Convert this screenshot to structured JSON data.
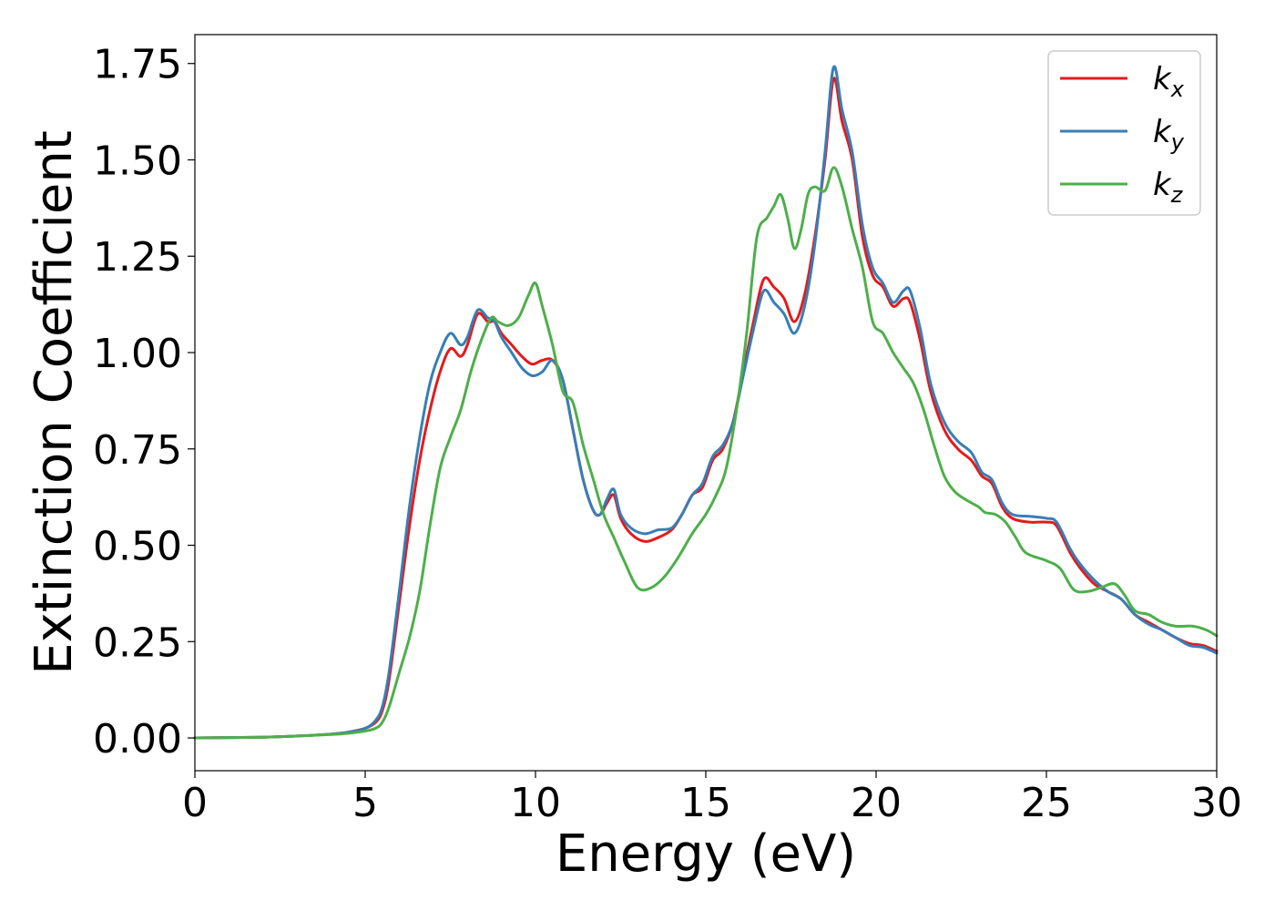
{
  "chart_data": {
    "type": "line",
    "xlabel": "Energy (eV)",
    "ylabel": "Extinction Coefficient",
    "xlim": [
      0,
      30
    ],
    "ylim": [
      -0.085,
      1.825
    ],
    "xticks": [
      0,
      5,
      10,
      15,
      20,
      25,
      30
    ],
    "xtick_labels": [
      "0",
      "5",
      "10",
      "15",
      "20",
      "25",
      "30"
    ],
    "yticks": [
      0,
      0.25,
      0.5,
      0.75,
      1.0,
      1.25,
      1.5,
      1.75
    ],
    "ytick_labels": [
      "0.00",
      "0.25",
      "0.50",
      "0.75",
      "1.00",
      "1.25",
      "1.50",
      "1.75"
    ],
    "grid": false,
    "legend_position": "top-right",
    "series": [
      {
        "name": "k_x",
        "base": "k",
        "sub": "x",
        "color": "#e41a1c",
        "points": [
          [
            0,
            0
          ],
          [
            2,
            0.002
          ],
          [
            3,
            0.005
          ],
          [
            4,
            0.01
          ],
          [
            4.5,
            0.015
          ],
          [
            5,
            0.025
          ],
          [
            5.3,
            0.04
          ],
          [
            5.5,
            0.07
          ],
          [
            5.7,
            0.15
          ],
          [
            6,
            0.35
          ],
          [
            6.3,
            0.55
          ],
          [
            6.6,
            0.72
          ],
          [
            6.9,
            0.85
          ],
          [
            7.2,
            0.95
          ],
          [
            7.5,
            1.01
          ],
          [
            7.8,
            0.99
          ],
          [
            8.0,
            1.02
          ],
          [
            8.3,
            1.1
          ],
          [
            8.6,
            1.08
          ],
          [
            8.8,
            1.08
          ],
          [
            9.0,
            1.05
          ],
          [
            9.3,
            1.02
          ],
          [
            9.6,
            0.99
          ],
          [
            9.9,
            0.97
          ],
          [
            10.2,
            0.98
          ],
          [
            10.5,
            0.98
          ],
          [
            10.8,
            0.93
          ],
          [
            11.1,
            0.8
          ],
          [
            11.4,
            0.67
          ],
          [
            11.7,
            0.59
          ],
          [
            11.9,
            0.58
          ],
          [
            12.1,
            0.61
          ],
          [
            12.3,
            0.63
          ],
          [
            12.5,
            0.57
          ],
          [
            12.8,
            0.53
          ],
          [
            13.2,
            0.51
          ],
          [
            13.6,
            0.52
          ],
          [
            14.0,
            0.54
          ],
          [
            14.3,
            0.58
          ],
          [
            14.6,
            0.63
          ],
          [
            14.9,
            0.65
          ],
          [
            15.2,
            0.72
          ],
          [
            15.5,
            0.75
          ],
          [
            15.8,
            0.82
          ],
          [
            16.1,
            0.95
          ],
          [
            16.4,
            1.08
          ],
          [
            16.7,
            1.19
          ],
          [
            17.0,
            1.17
          ],
          [
            17.3,
            1.14
          ],
          [
            17.6,
            1.08
          ],
          [
            17.9,
            1.15
          ],
          [
            18.2,
            1.3
          ],
          [
            18.5,
            1.5
          ],
          [
            18.75,
            1.71
          ],
          [
            19.0,
            1.6
          ],
          [
            19.3,
            1.5
          ],
          [
            19.6,
            1.3
          ],
          [
            19.9,
            1.2
          ],
          [
            20.2,
            1.17
          ],
          [
            20.5,
            1.12
          ],
          [
            20.8,
            1.14
          ],
          [
            21.0,
            1.13
          ],
          [
            21.3,
            1.03
          ],
          [
            21.6,
            0.9
          ],
          [
            22.0,
            0.8
          ],
          [
            22.4,
            0.75
          ],
          [
            22.8,
            0.72
          ],
          [
            23.1,
            0.68
          ],
          [
            23.4,
            0.66
          ],
          [
            23.7,
            0.6
          ],
          [
            24.0,
            0.57
          ],
          [
            24.5,
            0.56
          ],
          [
            25.0,
            0.56
          ],
          [
            25.3,
            0.55
          ],
          [
            25.7,
            0.48
          ],
          [
            26.0,
            0.44
          ],
          [
            26.4,
            0.4
          ],
          [
            26.8,
            0.38
          ],
          [
            27.2,
            0.36
          ],
          [
            27.6,
            0.32
          ],
          [
            28.0,
            0.3
          ],
          [
            28.4,
            0.28
          ],
          [
            28.8,
            0.26
          ],
          [
            29.2,
            0.245
          ],
          [
            29.6,
            0.24
          ],
          [
            30.0,
            0.225
          ]
        ]
      },
      {
        "name": "k_y",
        "base": "k",
        "sub": "y",
        "color": "#377eb8",
        "points": [
          [
            0,
            0
          ],
          [
            2,
            0.002
          ],
          [
            3,
            0.005
          ],
          [
            4,
            0.01
          ],
          [
            4.5,
            0.015
          ],
          [
            5,
            0.025
          ],
          [
            5.3,
            0.045
          ],
          [
            5.5,
            0.08
          ],
          [
            5.7,
            0.17
          ],
          [
            6,
            0.38
          ],
          [
            6.3,
            0.6
          ],
          [
            6.6,
            0.78
          ],
          [
            6.9,
            0.92
          ],
          [
            7.2,
            1.0
          ],
          [
            7.5,
            1.05
          ],
          [
            7.8,
            1.02
          ],
          [
            8.0,
            1.04
          ],
          [
            8.3,
            1.11
          ],
          [
            8.6,
            1.09
          ],
          [
            8.8,
            1.08
          ],
          [
            9.0,
            1.04
          ],
          [
            9.3,
            1.0
          ],
          [
            9.6,
            0.96
          ],
          [
            9.9,
            0.94
          ],
          [
            10.2,
            0.95
          ],
          [
            10.5,
            0.98
          ],
          [
            10.8,
            0.93
          ],
          [
            11.1,
            0.8
          ],
          [
            11.4,
            0.67
          ],
          [
            11.7,
            0.59
          ],
          [
            11.9,
            0.58
          ],
          [
            12.1,
            0.62
          ],
          [
            12.3,
            0.645
          ],
          [
            12.5,
            0.58
          ],
          [
            12.8,
            0.545
          ],
          [
            13.2,
            0.53
          ],
          [
            13.6,
            0.54
          ],
          [
            14.0,
            0.545
          ],
          [
            14.3,
            0.58
          ],
          [
            14.6,
            0.63
          ],
          [
            14.9,
            0.66
          ],
          [
            15.2,
            0.73
          ],
          [
            15.5,
            0.76
          ],
          [
            15.8,
            0.82
          ],
          [
            16.1,
            0.94
          ],
          [
            16.4,
            1.06
          ],
          [
            16.7,
            1.16
          ],
          [
            17.0,
            1.13
          ],
          [
            17.3,
            1.1
          ],
          [
            17.6,
            1.05
          ],
          [
            17.9,
            1.12
          ],
          [
            18.2,
            1.28
          ],
          [
            18.5,
            1.52
          ],
          [
            18.75,
            1.74
          ],
          [
            19.0,
            1.63
          ],
          [
            19.3,
            1.52
          ],
          [
            19.6,
            1.33
          ],
          [
            19.9,
            1.22
          ],
          [
            20.2,
            1.18
          ],
          [
            20.5,
            1.13
          ],
          [
            20.8,
            1.16
          ],
          [
            21.0,
            1.16
          ],
          [
            21.3,
            1.06
          ],
          [
            21.6,
            0.92
          ],
          [
            22.0,
            0.82
          ],
          [
            22.4,
            0.77
          ],
          [
            22.8,
            0.74
          ],
          [
            23.1,
            0.69
          ],
          [
            23.4,
            0.67
          ],
          [
            23.7,
            0.61
          ],
          [
            24.0,
            0.58
          ],
          [
            24.5,
            0.575
          ],
          [
            25.0,
            0.57
          ],
          [
            25.3,
            0.56
          ],
          [
            25.7,
            0.49
          ],
          [
            26.0,
            0.45
          ],
          [
            26.4,
            0.41
          ],
          [
            26.8,
            0.38
          ],
          [
            27.2,
            0.36
          ],
          [
            27.6,
            0.32
          ],
          [
            28.0,
            0.295
          ],
          [
            28.4,
            0.28
          ],
          [
            28.8,
            0.26
          ],
          [
            29.2,
            0.24
          ],
          [
            29.6,
            0.235
          ],
          [
            30.0,
            0.22
          ]
        ]
      },
      {
        "name": "k_z",
        "base": "k",
        "sub": "z",
        "color": "#4daf4a",
        "points": [
          [
            0,
            0
          ],
          [
            2,
            0.002
          ],
          [
            3,
            0.005
          ],
          [
            4,
            0.009
          ],
          [
            4.5,
            0.012
          ],
          [
            5,
            0.018
          ],
          [
            5.3,
            0.025
          ],
          [
            5.5,
            0.04
          ],
          [
            5.7,
            0.08
          ],
          [
            6,
            0.17
          ],
          [
            6.3,
            0.26
          ],
          [
            6.6,
            0.38
          ],
          [
            6.9,
            0.55
          ],
          [
            7.2,
            0.7
          ],
          [
            7.5,
            0.78
          ],
          [
            7.8,
            0.85
          ],
          [
            8.1,
            0.95
          ],
          [
            8.4,
            1.03
          ],
          [
            8.7,
            1.09
          ],
          [
            8.9,
            1.08
          ],
          [
            9.2,
            1.07
          ],
          [
            9.5,
            1.09
          ],
          [
            9.8,
            1.15
          ],
          [
            10.0,
            1.18
          ],
          [
            10.2,
            1.12
          ],
          [
            10.5,
            1.02
          ],
          [
            10.8,
            0.9
          ],
          [
            11.1,
            0.87
          ],
          [
            11.4,
            0.76
          ],
          [
            11.7,
            0.67
          ],
          [
            12.0,
            0.58
          ],
          [
            12.3,
            0.52
          ],
          [
            12.6,
            0.46
          ],
          [
            13.0,
            0.39
          ],
          [
            13.4,
            0.39
          ],
          [
            13.8,
            0.42
          ],
          [
            14.2,
            0.47
          ],
          [
            14.6,
            0.53
          ],
          [
            15.0,
            0.58
          ],
          [
            15.3,
            0.63
          ],
          [
            15.6,
            0.7
          ],
          [
            15.9,
            0.85
          ],
          [
            16.2,
            1.05
          ],
          [
            16.5,
            1.3
          ],
          [
            16.8,
            1.35
          ],
          [
            17.0,
            1.38
          ],
          [
            17.2,
            1.41
          ],
          [
            17.4,
            1.35
          ],
          [
            17.6,
            1.27
          ],
          [
            17.8,
            1.32
          ],
          [
            18.0,
            1.41
          ],
          [
            18.2,
            1.43
          ],
          [
            18.5,
            1.42
          ],
          [
            18.75,
            1.48
          ],
          [
            19.0,
            1.43
          ],
          [
            19.3,
            1.32
          ],
          [
            19.6,
            1.22
          ],
          [
            19.9,
            1.08
          ],
          [
            20.2,
            1.05
          ],
          [
            20.5,
            1.0
          ],
          [
            20.8,
            0.96
          ],
          [
            21.1,
            0.92
          ],
          [
            21.4,
            0.85
          ],
          [
            21.7,
            0.76
          ],
          [
            22.0,
            0.68
          ],
          [
            22.3,
            0.64
          ],
          [
            22.6,
            0.62
          ],
          [
            23.0,
            0.6
          ],
          [
            23.2,
            0.585
          ],
          [
            23.5,
            0.58
          ],
          [
            23.8,
            0.56
          ],
          [
            24.1,
            0.52
          ],
          [
            24.4,
            0.48
          ],
          [
            25.0,
            0.46
          ],
          [
            25.4,
            0.44
          ],
          [
            25.8,
            0.385
          ],
          [
            26.2,
            0.38
          ],
          [
            26.6,
            0.39
          ],
          [
            27.0,
            0.4
          ],
          [
            27.3,
            0.37
          ],
          [
            27.6,
            0.33
          ],
          [
            28.0,
            0.32
          ],
          [
            28.4,
            0.3
          ],
          [
            28.8,
            0.29
          ],
          [
            29.3,
            0.29
          ],
          [
            29.7,
            0.28
          ],
          [
            30.0,
            0.265
          ]
        ]
      }
    ]
  }
}
